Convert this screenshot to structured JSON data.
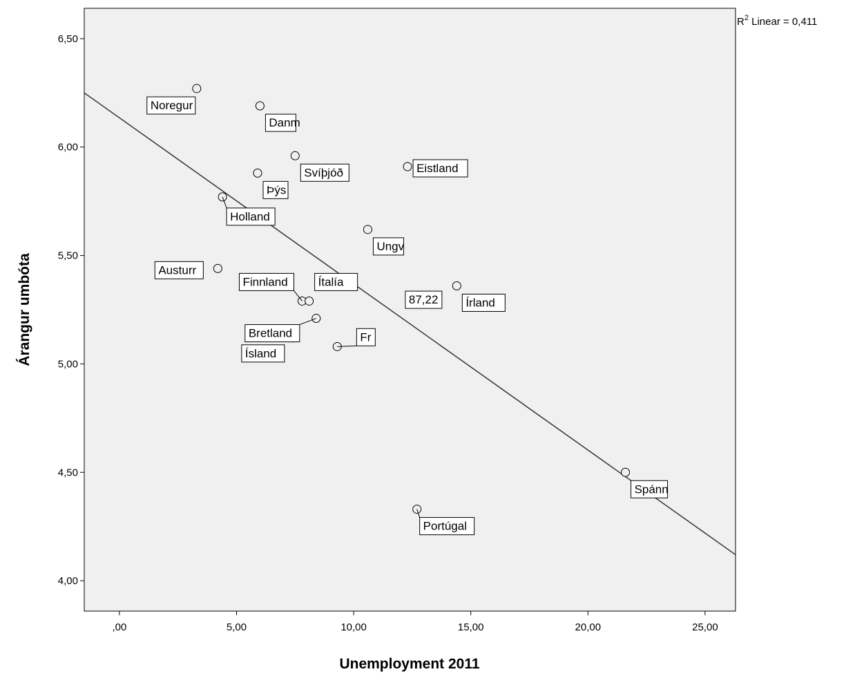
{
  "chart_data": {
    "type": "scatter",
    "xlabel": "Unemployment 2011",
    "ylabel": "Árangur umbóta",
    "xlim": [
      -1.5,
      26.3
    ],
    "ylim": [
      3.86,
      6.64
    ],
    "xticks": [
      0,
      5,
      10,
      15,
      20,
      25
    ],
    "xtick_labels": [
      ",00",
      "5,00",
      "10,00",
      "15,00",
      "20,00",
      "25,00"
    ],
    "yticks": [
      4.0,
      4.5,
      5.0,
      5.5,
      6.0,
      6.5
    ],
    "ytick_labels": [
      "4,00",
      "4,50",
      "5,00",
      "5,50",
      "6,00",
      "6,50"
    ],
    "grid": false,
    "fit_line": {
      "type": "linear",
      "annotation_base": "R",
      "annotation_sup": "2",
      "annotation_rest": " Linear = 0,411",
      "x": [
        -1.5,
        26.3
      ],
      "y": [
        6.25,
        4.12
      ]
    },
    "points": [
      {
        "label": "Noregur",
        "x": 3.3,
        "y": 6.27
      },
      {
        "label": "Danm",
        "x": 6.0,
        "y": 6.19
      },
      {
        "label": "Svíþjóð",
        "x": 7.5,
        "y": 5.96
      },
      {
        "label": "Eistland",
        "x": 12.3,
        "y": 5.91
      },
      {
        "label": "Þýs",
        "x": 5.9,
        "y": 5.88
      },
      {
        "label": "Holland",
        "x": 4.4,
        "y": 5.77
      },
      {
        "label": "Ungv",
        "x": 10.6,
        "y": 5.62
      },
      {
        "label": "Austurr",
        "x": 4.2,
        "y": 5.44
      },
      {
        "label": "Írland",
        "x": 14.4,
        "y": 5.36
      },
      {
        "label": "Finnland",
        "x": 7.8,
        "y": 5.29
      },
      {
        "label": "Ítalía",
        "x": 8.1,
        "y": 5.29
      },
      {
        "label": "Bretland",
        "x": 8.4,
        "y": 5.21
      },
      {
        "label": "Ísland",
        "x": 7.4,
        "y": 5.12
      },
      {
        "label": "Fr",
        "x": 9.3,
        "y": 5.08
      },
      {
        "label": "Spánn",
        "x": 21.6,
        "y": 4.5
      },
      {
        "label": "Portúgal",
        "x": 12.7,
        "y": 4.33
      }
    ],
    "annotation": {
      "text": "87,22",
      "x": 12.5,
      "y": 5.24
    }
  }
}
